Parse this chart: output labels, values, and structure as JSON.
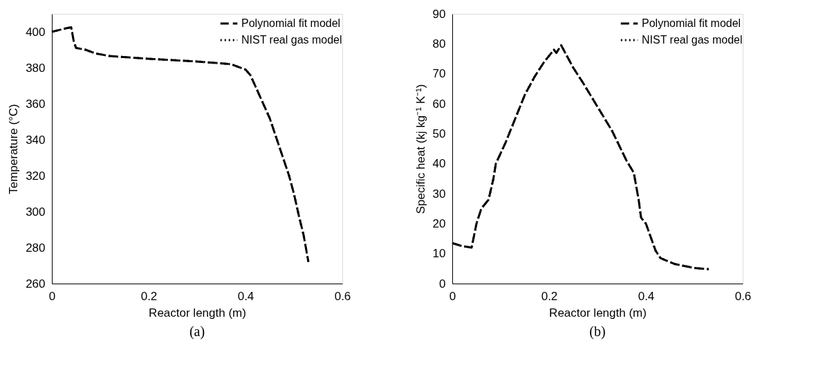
{
  "chart_data": [
    {
      "type": "line",
      "xlabel": "Reactor length (m)",
      "ylabel": "Temperature (°C)",
      "xlim": [
        0,
        0.6
      ],
      "xticks": [
        0,
        0.2,
        0.4,
        0.6
      ],
      "ylim": [
        260,
        410
      ],
      "yticks": [
        260,
        280,
        300,
        320,
        340,
        360,
        380,
        400
      ],
      "grid": false,
      "legend": "top right",
      "annotations": [
        "(a)"
      ],
      "x": [
        0,
        0.03,
        0.04,
        0.045,
        0.05,
        0.07,
        0.09,
        0.12,
        0.2,
        0.3,
        0.37,
        0.4,
        0.41,
        0.42,
        0.43,
        0.45,
        0.47,
        0.49,
        0.5,
        0.51,
        0.52,
        0.53
      ],
      "series": [
        {
          "name": "Polynomial fit model",
          "color": "#000000",
          "line_style": "dashed",
          "values": [
            400,
            402,
            402.5,
            395,
            391,
            390,
            388,
            386.5,
            385,
            383.5,
            382,
            379,
            376,
            370,
            364,
            352,
            336,
            320,
            310,
            298,
            287,
            272
          ]
        },
        {
          "name": "NIST real gas model",
          "color": "#000000",
          "line_style": "dotted",
          "values": [
            400,
            402,
            402.5,
            395,
            391,
            390,
            388,
            386.5,
            385,
            383.5,
            382,
            379,
            376,
            370,
            364,
            352,
            336,
            320,
            310,
            298,
            287,
            272
          ]
        }
      ]
    },
    {
      "type": "line",
      "xlabel": "Reactor length (m)",
      "ylabel": "Specific heat (kj kg⁻¹ K⁻¹)",
      "xlim": [
        0,
        0.6
      ],
      "xticks": [
        0,
        0.2,
        0.4,
        0.6
      ],
      "ylim": [
        0,
        90
      ],
      "yticks": [
        0,
        10,
        20,
        30,
        40,
        50,
        60,
        70,
        80,
        90
      ],
      "grid": false,
      "legend": "top right",
      "annotations": [
        "(b)"
      ],
      "x": [
        0,
        0.02,
        0.04,
        0.05,
        0.06,
        0.075,
        0.085,
        0.09,
        0.11,
        0.13,
        0.15,
        0.17,
        0.19,
        0.21,
        0.215,
        0.225,
        0.25,
        0.27,
        0.3,
        0.33,
        0.36,
        0.375,
        0.385,
        0.39,
        0.4,
        0.42,
        0.43,
        0.46,
        0.5,
        0.53
      ],
      "series": [
        {
          "name": "Polynomial fit model",
          "color": "#000000",
          "line_style": "dashed",
          "values": [
            13.5,
            12.5,
            12,
            20,
            25,
            28,
            35,
            40,
            47,
            55,
            63,
            69,
            74,
            78,
            77,
            79.5,
            72,
            67,
            59,
            51,
            41,
            37,
            28,
            22,
            20,
            11,
            8.5,
            6.5,
            5.2,
            4.8
          ]
        },
        {
          "name": "NIST real gas model",
          "color": "#000000",
          "line_style": "dotted",
          "values": [
            13.5,
            12.5,
            12,
            20,
            25,
            28,
            35,
            40,
            47,
            55,
            63,
            69,
            74,
            78,
            77,
            79.5,
            72,
            67,
            59,
            51,
            41,
            37,
            28,
            22,
            20,
            11,
            8.5,
            6.5,
            5.2,
            4.8
          ]
        }
      ]
    }
  ]
}
